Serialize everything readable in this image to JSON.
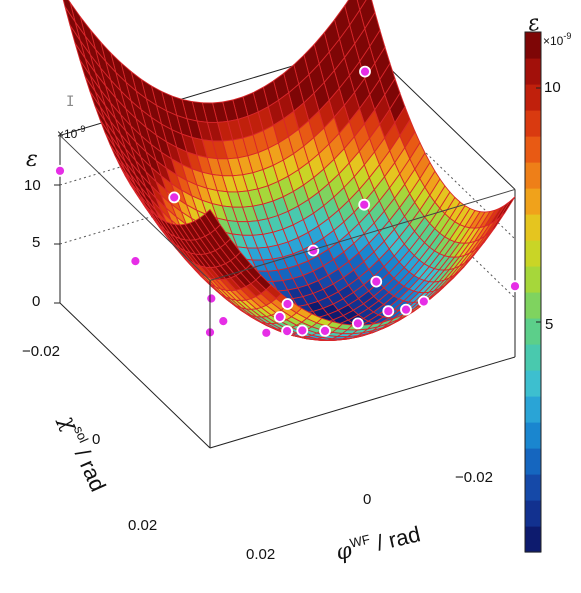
{
  "chart_data": {
    "type": "surface3d",
    "title": "",
    "zlabel": "ε",
    "xlabel_main": "φ",
    "xlabel_sup": "WF",
    "xlabel_unit": " / rad",
    "ylabel_main": "χ",
    "ylabel_sup": "sol",
    "ylabel_unit": " / rad",
    "z_exponent": "×10",
    "z_exponent_power": "-9",
    "x_range": [
      -0.03,
      0.03
    ],
    "y_range": [
      -0.03,
      0.03
    ],
    "z_range": [
      0,
      12
    ],
    "x_ticks": [
      "0.02",
      "0",
      "−0.02"
    ],
    "y_ticks": [
      "−0.02",
      "0",
      "0.02"
    ],
    "z_ticks": [
      "0",
      "5",
      "10"
    ],
    "colorbar": {
      "title": "ε",
      "exponent": "×10",
      "exponent_power": "-9",
      "ticks": [
        "10",
        "5"
      ],
      "colors": [
        "#0d1b6e",
        "#12318f",
        "#1549a8",
        "#1566bf",
        "#1a86cf",
        "#2aa4d6",
        "#3dbfcf",
        "#49c9ae",
        "#5ccf8a",
        "#7fd35f",
        "#a6d73a",
        "#c9d526",
        "#e5c51f",
        "#f0a21b",
        "#ee7f18",
        "#e85a14",
        "#d93a10",
        "#c0200c",
        "#a2100a",
        "#7e0606"
      ]
    },
    "surface_model": "eps = 1.3 + 11500*((x+0.0048)^2) + 8800*((y-0.0062)^2) (x10^-9)",
    "points": [
      {
        "x": 0.03,
        "y": -0.03,
        "z": 11.2
      },
      {
        "x": -0.03,
        "y": -0.03,
        "z": 11.9
      },
      {
        "x": -0.03,
        "y": 0.03,
        "z": 6.0
      },
      {
        "x": 0.03,
        "y": 0.03,
        "z": 9.8
      },
      {
        "x": 0.01,
        "y": -0.025,
        "z": 7.4
      },
      {
        "x": -0.02,
        "y": -0.01,
        "z": 6.0
      },
      {
        "x": 0.025,
        "y": -0.01,
        "z": 7.0
      },
      {
        "x": -0.01,
        "y": -0.01,
        "z": 3.4
      },
      {
        "x": 0.015,
        "y": 0.0,
        "z": 4.6
      },
      {
        "x": 0.003,
        "y": 0.003,
        "z": 2.1
      },
      {
        "x": 0.0,
        "y": 0.0,
        "z": 2.2
      },
      {
        "x": -0.015,
        "y": 0.005,
        "z": 3.2
      },
      {
        "x": 0.02,
        "y": 0.015,
        "z": 6.4
      },
      {
        "x": 0.005,
        "y": 0.01,
        "z": 2.6
      },
      {
        "x": 0.003,
        "y": 0.012,
        "z": 2.8
      },
      {
        "x": 0.0,
        "y": 0.015,
        "z": 3.0
      },
      {
        "x": -0.005,
        "y": 0.018,
        "z": 3.6
      },
      {
        "x": -0.01,
        "y": 0.02,
        "z": 4.4
      },
      {
        "x": 0.015,
        "y": 0.022,
        "z": 6.2
      },
      {
        "x": -0.012,
        "y": 0.023,
        "z": 4.9
      },
      {
        "x": -0.015,
        "y": 0.024,
        "z": 5.4
      }
    ]
  }
}
